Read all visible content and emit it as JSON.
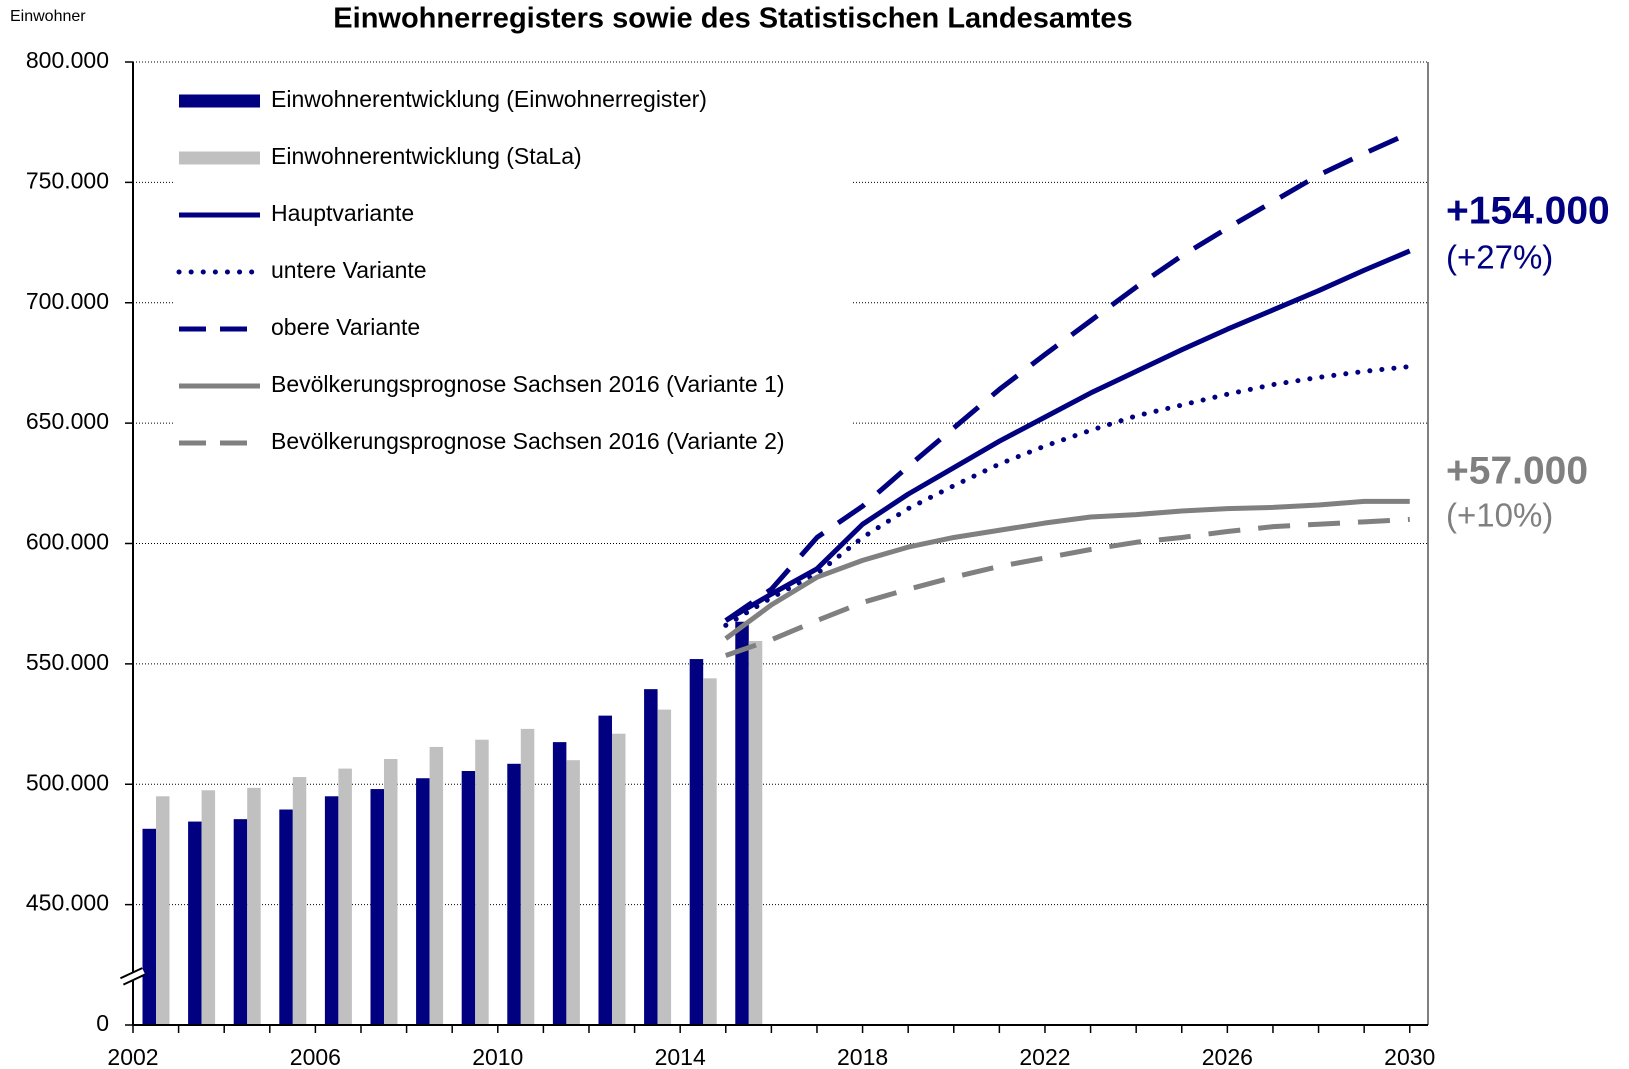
{
  "chart_data": {
    "type": "combo",
    "title": "Einwohnerregisters sowie des Statistischen Landesamtes",
    "y_label": "Einwohner",
    "x": [
      2002,
      2003,
      2004,
      2005,
      2006,
      2007,
      2008,
      2009,
      2010,
      2011,
      2012,
      2013,
      2014,
      2015,
      2016,
      2017,
      2018,
      2019,
      2020,
      2021,
      2022,
      2023,
      2024,
      2025,
      2026,
      2027,
      2028,
      2029,
      2030
    ],
    "xlim": [
      2002,
      2030.4
    ],
    "xticks": [
      2002,
      2006,
      2010,
      2014,
      2018,
      2022,
      2026,
      2030
    ],
    "ylim": [
      0,
      800000
    ],
    "yticks": [
      0,
      {
        "value": 450000,
        "label": "450.000"
      },
      {
        "value": 500000,
        "label": "500.000"
      },
      {
        "value": 550000,
        "label": "550.000"
      },
      {
        "value": 600000,
        "label": "600.000"
      },
      {
        "value": 650000,
        "label": "650.000"
      },
      {
        "value": 700000,
        "label": "700.000"
      },
      {
        "value": 750000,
        "label": "750.000"
      },
      {
        "value": 800000,
        "label": "800.000"
      }
    ],
    "axis_break": true,
    "grid": true,
    "legend": "upper left",
    "series": [
      {
        "name": "Einwohnerentwicklung (Einwohnerregister)",
        "type": "bar",
        "color": "#000080",
        "values": [
          481500,
          484500,
          485500,
          489500,
          495000,
          498000,
          502500,
          505500,
          508500,
          517500,
          528500,
          539500,
          552000,
          567500,
          null,
          null,
          null,
          null,
          null,
          null,
          null,
          null,
          null,
          null,
          null,
          null,
          null,
          null,
          null
        ]
      },
      {
        "name": "Einwohnerentwicklung (StaLa)",
        "type": "bar",
        "color": "#c0c0c0",
        "values": [
          495000,
          497500,
          498500,
          503000,
          506500,
          510500,
          515500,
          518500,
          523000,
          510000,
          521000,
          531000,
          544000,
          559500,
          null,
          null,
          null,
          null,
          null,
          null,
          null,
          null,
          null,
          null,
          null,
          null,
          null,
          null,
          null
        ]
      },
      {
        "name": "Hauptvariante",
        "type": "line",
        "style": "solid",
        "color": "#000080",
        "values": [
          null,
          null,
          null,
          null,
          null,
          null,
          null,
          null,
          null,
          null,
          null,
          null,
          null,
          568000,
          579000,
          589500,
          608000,
          620500,
          631500,
          642500,
          652500,
          662500,
          671500,
          680500,
          689000,
          697000,
          705000,
          713500,
          721500
        ]
      },
      {
        "name": "untere Variante",
        "type": "line",
        "style": "dotted",
        "color": "#000080",
        "values": [
          null,
          null,
          null,
          null,
          null,
          null,
          null,
          null,
          null,
          null,
          null,
          null,
          null,
          566000,
          577500,
          587500,
          602500,
          614500,
          624000,
          633000,
          640500,
          647000,
          653000,
          657500,
          662000,
          666000,
          669000,
          671500,
          673500
        ]
      },
      {
        "name": "obere Variante",
        "type": "line",
        "style": "dashed",
        "color": "#000080",
        "values": [
          null,
          null,
          null,
          null,
          null,
          null,
          null,
          null,
          null,
          null,
          null,
          null,
          null,
          568000,
          581000,
          602500,
          615500,
          632000,
          648000,
          664000,
          678500,
          692500,
          706500,
          719500,
          731000,
          742000,
          753000,
          762000,
          770500
        ]
      },
      {
        "name": "Bevölkerungsprognose Sachsen 2016 (Variante 1)",
        "type": "line",
        "style": "solid",
        "color": "#808080",
        "values": [
          null,
          null,
          null,
          null,
          null,
          null,
          null,
          null,
          null,
          null,
          null,
          null,
          null,
          560500,
          574500,
          586000,
          593000,
          598500,
          602500,
          605500,
          608500,
          611000,
          612000,
          613500,
          614500,
          615000,
          616000,
          617500,
          617500
        ]
      },
      {
        "name": "Bevölkerungsprognose Sachsen 2016 (Variante 2)",
        "type": "line",
        "style": "dashed",
        "color": "#808080",
        "values": [
          null,
          null,
          null,
          null,
          null,
          null,
          null,
          null,
          null,
          null,
          null,
          null,
          null,
          553500,
          560000,
          568000,
          575500,
          581000,
          586000,
          590500,
          594000,
          597500,
          600500,
          602500,
          605000,
          607000,
          608000,
          609000,
          610000
        ]
      }
    ],
    "annotations": [
      {
        "text": "+154.000",
        "color": "#000080",
        "bold": true
      },
      {
        "text": "(+27%)",
        "color": "#000080",
        "bold": false
      },
      {
        "text": "+57.000",
        "color": "#808080",
        "bold": true
      },
      {
        "text": "(+10%)",
        "color": "#808080",
        "bold": false
      }
    ]
  }
}
